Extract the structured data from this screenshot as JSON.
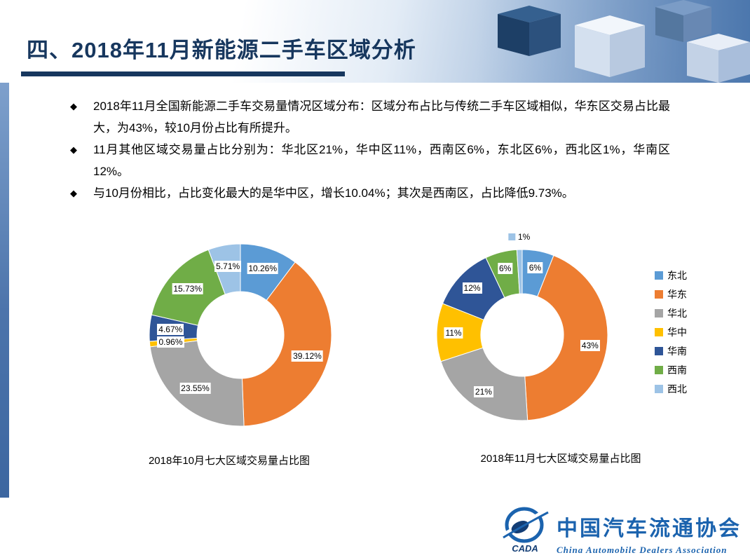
{
  "slide": {
    "title": "四、2018年11月新能源二手车区域分析",
    "accent_color": "#17375E",
    "bullet_marker": "◆",
    "bullets": [
      "2018年11月全国新能源二手车交易量情况区域分布：区域分布占比与传统二手车区域相似，华东区交易占比最大，为43%，较10月份占比有所提升。",
      "11月其他区域交易量占比分别为：华北区21%，华中区11%，西南区6%，东北区6%，西北区1%，华南区12%。",
      "与10月份相比，占比变化最大的是华中区，增长10.04%；其次是西南区，占比降低9.73%。"
    ]
  },
  "chart_data": [
    {
      "type": "pie",
      "subtype": "donut",
      "title": "2018年10月七大区域交易量占比图",
      "categories": [
        "东北",
        "华东",
        "华北",
        "华中",
        "华南",
        "西南",
        "西北"
      ],
      "values": [
        10.26,
        39.12,
        23.55,
        0.96,
        4.67,
        15.73,
        5.71
      ],
      "data_labels": [
        "10.26%",
        "39.12%",
        "23.55%",
        "0.96%",
        "4.67%",
        "15.73%",
        "5.71%"
      ],
      "colors": [
        "#5B9BD5",
        "#ED7D31",
        "#A5A5A5",
        "#FFC000",
        "#2F5597",
        "#70AD47",
        "#9DC3E6"
      ],
      "start_angle": 0,
      "direction": "clockwise",
      "legend": "none",
      "callout_labels": []
    },
    {
      "type": "pie",
      "subtype": "donut",
      "title": "2018年11月七大区域交易量占比图",
      "categories": [
        "东北",
        "华东",
        "华北",
        "华中",
        "华南",
        "西南",
        "西北"
      ],
      "values": [
        6,
        43,
        21,
        11,
        12,
        6,
        1
      ],
      "data_labels": [
        "6%",
        "43%",
        "21%",
        "11%",
        "12%",
        "6%",
        "1%"
      ],
      "colors": [
        "#5B9BD5",
        "#ED7D31",
        "#A5A5A5",
        "#FFC000",
        "#2F5597",
        "#70AD47",
        "#9DC3E6"
      ],
      "start_angle": 0,
      "direction": "clockwise",
      "legend": "right",
      "callout_labels": [
        6
      ]
    }
  ],
  "footer": {
    "org_cn": "中国汽车流通协会",
    "org_en": "China  Automobile  Dealers  Association",
    "logo_text": "CADA",
    "logo_color": "#1b63ae"
  }
}
